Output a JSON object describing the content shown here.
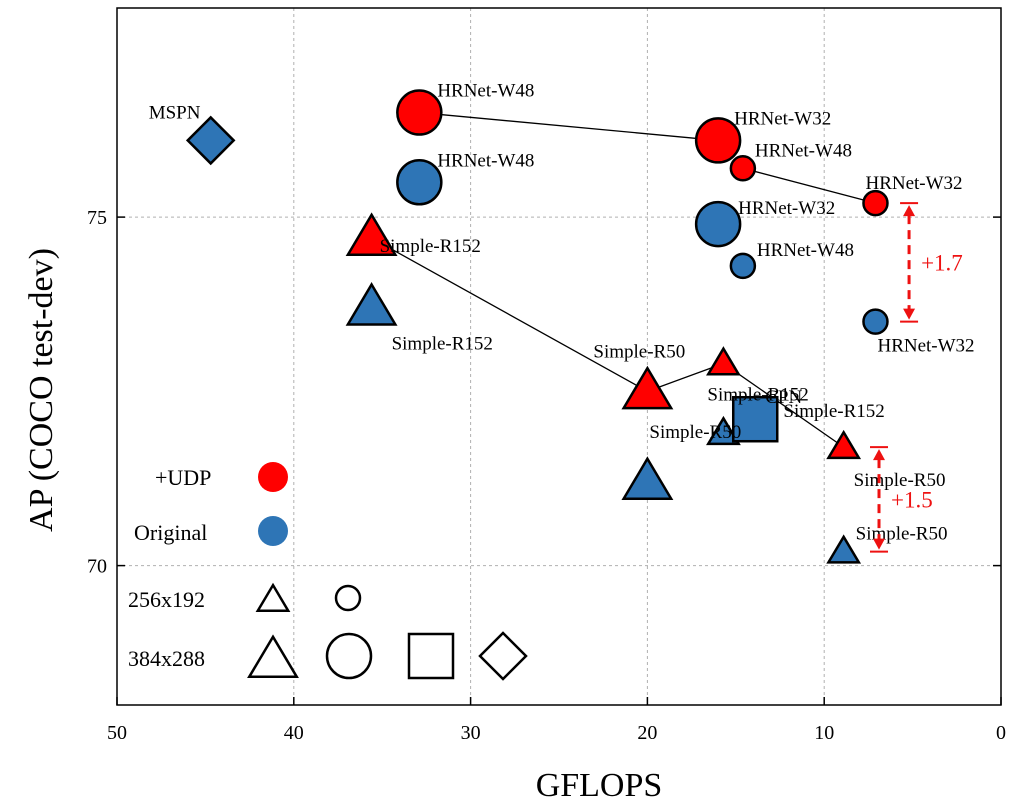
{
  "chart_data": {
    "type": "scatter",
    "xlabel": "GFLOPS",
    "ylabel": "AP (COCO test-dev)",
    "xlim": [
      50,
      0
    ],
    "ylim": [
      68,
      78
    ],
    "x_reversed": true,
    "xticks": [
      50,
      40,
      30,
      20,
      10,
      0
    ],
    "yticks": [
      70,
      75
    ],
    "grid": true,
    "colors": {
      "udp": "#ff0000",
      "original": "#2e75b6"
    },
    "points": [
      {
        "label": "MSPN",
        "gflops": 44.7,
        "ap": 76.1,
        "group": "original",
        "shape": "diamond",
        "size": "large"
      },
      {
        "label": "HRNet-W48",
        "gflops": 32.9,
        "ap": 76.5,
        "group": "udp",
        "shape": "circle",
        "size": "large"
      },
      {
        "label": "HRNet-W48",
        "gflops": 32.9,
        "ap": 75.5,
        "group": "original",
        "shape": "circle",
        "size": "large"
      },
      {
        "label": "HRNet-W32",
        "gflops": 16.0,
        "ap": 76.1,
        "group": "udp",
        "shape": "circle",
        "size": "large"
      },
      {
        "label": "HRNet-W32",
        "gflops": 16.0,
        "ap": 74.9,
        "group": "original",
        "shape": "circle",
        "size": "large"
      },
      {
        "label": "HRNet-W48",
        "gflops": 14.6,
        "ap": 75.7,
        "group": "udp",
        "shape": "circle",
        "size": "small"
      },
      {
        "label": "HRNet-W48",
        "gflops": 14.6,
        "ap": 74.3,
        "group": "original",
        "shape": "circle",
        "size": "small"
      },
      {
        "label": "HRNet-W32",
        "gflops": 7.1,
        "ap": 75.2,
        "group": "udp",
        "shape": "circle",
        "size": "small"
      },
      {
        "label": "HRNet-W32",
        "gflops": 7.1,
        "ap": 73.5,
        "group": "original",
        "shape": "circle",
        "size": "small"
      },
      {
        "label": "Simple-R152",
        "gflops": 35.6,
        "ap": 74.7,
        "group": "udp",
        "shape": "triangle",
        "size": "large"
      },
      {
        "label": "Simple-R152",
        "gflops": 35.6,
        "ap": 73.7,
        "group": "original",
        "shape": "triangle",
        "size": "large"
      },
      {
        "label": "Simple-R50",
        "gflops": 20.0,
        "ap": 72.5,
        "group": "udp",
        "shape": "triangle",
        "size": "large"
      },
      {
        "label": "Simple-R50",
        "gflops": 20.0,
        "ap": 71.2,
        "group": "original",
        "shape": "triangle",
        "size": "large"
      },
      {
        "label": "Simple-R152",
        "gflops": 15.7,
        "ap": 72.9,
        "group": "udp",
        "shape": "triangle",
        "size": "small"
      },
      {
        "label": "Simple-R152",
        "gflops": 15.7,
        "ap": 71.9,
        "group": "original",
        "shape": "triangle",
        "size": "small"
      },
      {
        "label": "CPN",
        "gflops": 13.9,
        "ap": 72.1,
        "group": "original",
        "shape": "square",
        "size": "large"
      },
      {
        "label": "Simple-R50",
        "gflops": 8.9,
        "ap": 71.7,
        "group": "udp",
        "shape": "triangle",
        "size": "small"
      },
      {
        "label": "Simple-R50",
        "gflops": 8.9,
        "ap": 70.2,
        "group": "original",
        "shape": "triangle",
        "size": "small"
      }
    ],
    "udp_lines": [
      [
        [
          32.9,
          76.5
        ],
        [
          16.0,
          76.1
        ]
      ],
      [
        [
          14.6,
          75.7
        ],
        [
          7.1,
          75.2
        ]
      ],
      [
        [
          35.6,
          74.7
        ],
        [
          20.0,
          72.5
        ],
        [
          15.7,
          72.9
        ],
        [
          8.9,
          71.7
        ]
      ]
    ],
    "annotations": [
      {
        "text": "+1.7",
        "gflops": 5.2,
        "from_ap": 73.5,
        "to_ap": 75.2
      },
      {
        "text": "+1.5",
        "gflops": 6.9,
        "from_ap": 70.2,
        "to_ap": 71.7
      }
    ],
    "legend": {
      "udp_label": "+UDP",
      "original_label": "Original",
      "size_small_label": "256x192",
      "size_large_label": "384x288"
    }
  }
}
